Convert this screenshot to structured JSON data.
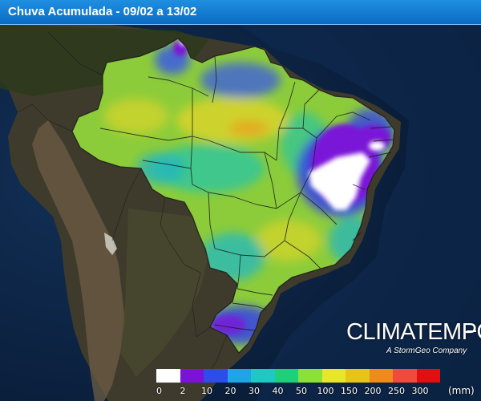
{
  "title": "Chuva Acumulada - 09/02 a 13/02",
  "logo": {
    "brand": "CLIMATEMPO",
    "subtitle": "A StormGeo Company"
  },
  "legend": {
    "colors": [
      "#ffffff",
      "#7a12d8",
      "#2d4ce8",
      "#1ea5e6",
      "#1ec9c4",
      "#1fd07a",
      "#8be03a",
      "#e6e62a",
      "#e6c41a",
      "#f08a1a",
      "#f04a3a",
      "#e01010"
    ],
    "labels": [
      "0",
      "2",
      "10",
      "20",
      "30",
      "40",
      "50",
      "100",
      "150",
      "200",
      "250",
      "300"
    ],
    "unit": "(mm)"
  },
  "palette": {
    "ocean": "#0c2444",
    "land": "#3e3b2c",
    "andes": "#6e5c44",
    "forest": "#2c3a1c",
    "border": "#1b1b1b"
  }
}
